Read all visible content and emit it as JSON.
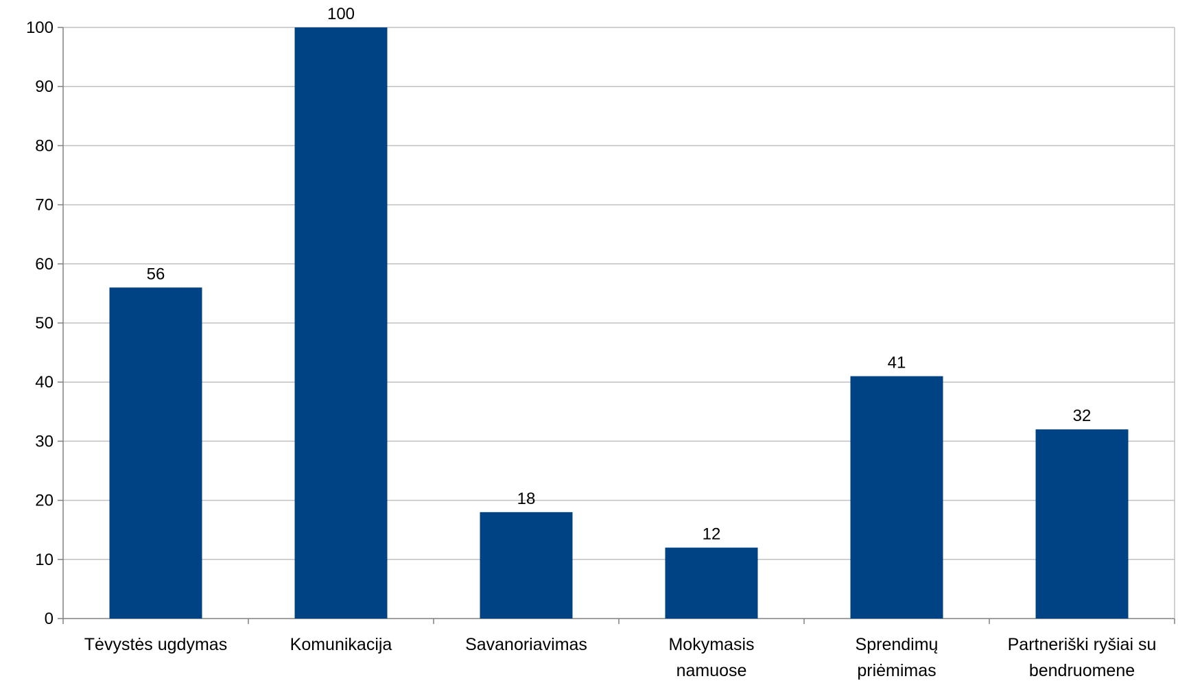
{
  "chart_data": {
    "type": "bar",
    "categories": [
      [
        "Tėvystės ugdymas"
      ],
      [
        "Komunikacija"
      ],
      [
        "Savanoriavimas"
      ],
      [
        "Mokymasis",
        "namuose"
      ],
      [
        "Sprendimų",
        "priėmimas"
      ],
      [
        "Partneriški ryšiai su",
        "bendruomene"
      ]
    ],
    "values": [
      56,
      100,
      18,
      12,
      41,
      32
    ],
    "data_labels": [
      "56",
      "100",
      "18",
      "12",
      "41",
      "32"
    ],
    "title": "",
    "xlabel": "",
    "ylabel": "",
    "ylim": [
      0,
      100
    ],
    "yticks": [
      0,
      10,
      20,
      30,
      40,
      50,
      60,
      70,
      80,
      90,
      100
    ],
    "grid": true,
    "legend": "none",
    "colors": {
      "bar": "#004385",
      "grid": "#c0c0c0",
      "axis": "#808080"
    }
  }
}
